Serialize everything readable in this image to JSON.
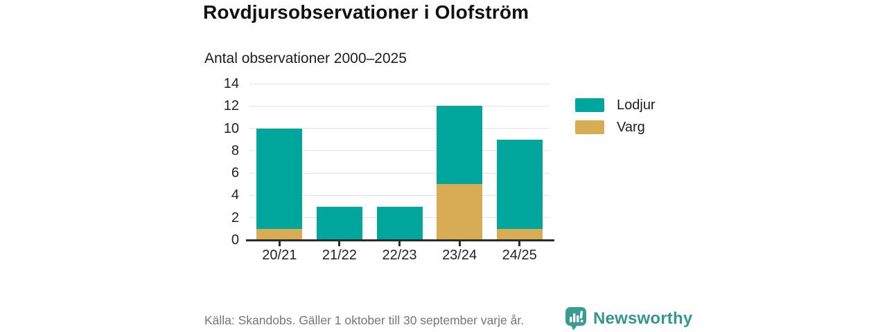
{
  "header": {
    "title": "Rovdjursobservationer i Olofström",
    "subtitle": "Antal observationer 2000–2025"
  },
  "chart_data": {
    "type": "bar",
    "stacked": true,
    "title": "Rovdjursobservationer i Olofström",
    "subtitle": "Antal observationer 2000–2025",
    "categories": [
      "20/21",
      "21/22",
      "22/23",
      "23/24",
      "24/25"
    ],
    "series": [
      {
        "name": "Lodjur",
        "color": "#00A69C",
        "values": [
          9,
          3,
          3,
          7,
          8
        ]
      },
      {
        "name": "Varg",
        "color": "#D8AC54",
        "values": [
          1,
          0,
          0,
          5,
          1
        ]
      }
    ],
    "stack_order_bottom_to_top": [
      "Varg",
      "Lodjur"
    ],
    "totals": [
      10,
      3,
      3,
      12,
      9
    ],
    "xlabel": "",
    "ylabel": "",
    "ylim": [
      0,
      14
    ],
    "yticks": [
      0,
      2,
      4,
      6,
      8,
      10,
      12,
      14
    ],
    "grid": true,
    "legend_position": "right"
  },
  "legend": {
    "items": [
      {
        "label": "Lodjur",
        "color": "#00A69C"
      },
      {
        "label": "Varg",
        "color": "#D8AC54"
      }
    ]
  },
  "footer": {
    "source": "Källa: Skandobs. Gäller 1 oktober till 30 september varje år.",
    "brand": "Newsworthy",
    "brand_color": "#34968C",
    "logo_color": "#3A9B91"
  }
}
